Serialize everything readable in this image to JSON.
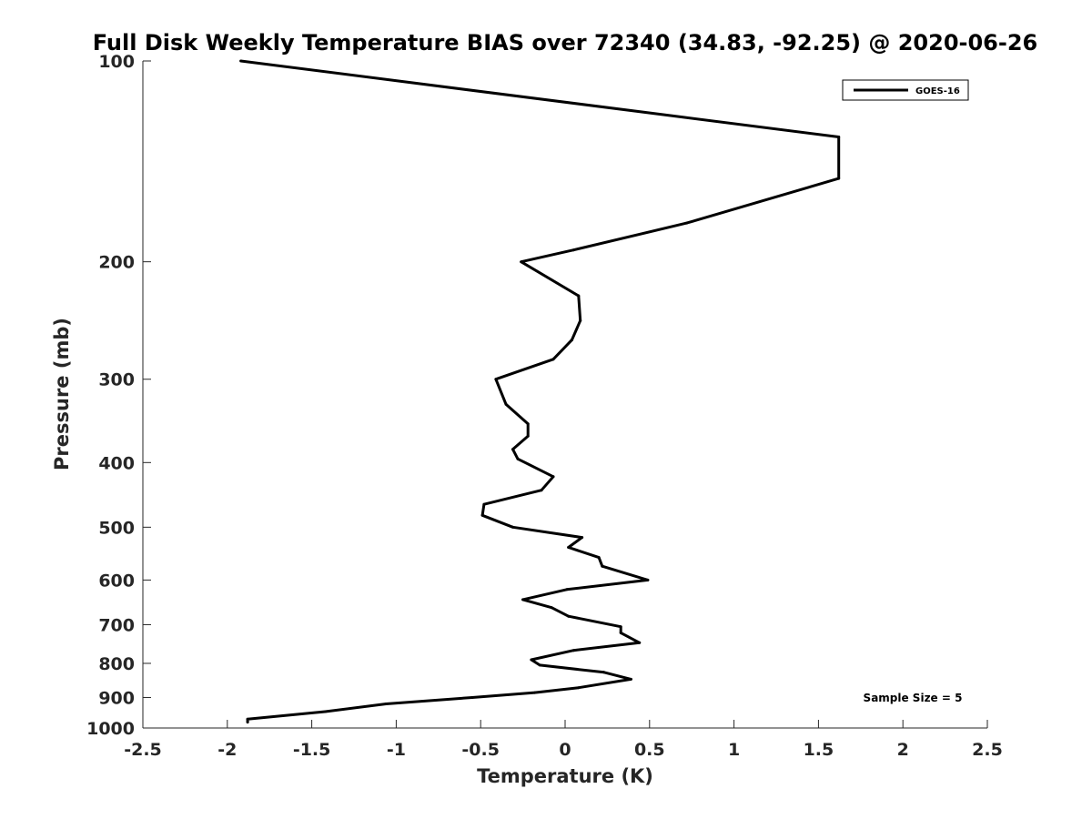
{
  "chart_data": {
    "type": "line",
    "title": "Full Disk Weekly Temperature BIAS over 72340 (34.83, -92.25) @ 2020-06-26",
    "xlabel": "Temperature (K)",
    "ylabel": "Pressure (mb)",
    "xlim": [
      -2.5,
      2.5
    ],
    "ylim": [
      100,
      1000
    ],
    "y_scale": "log",
    "y_reversed": true,
    "grid": false,
    "legend_position": "top-right",
    "x_ticks": [
      "-2.5",
      "-2",
      "-1.5",
      "-1",
      "-0.5",
      "0",
      "0.5",
      "1",
      "1.5",
      "2",
      "2.5"
    ],
    "y_ticks": [
      "100",
      "200",
      "300",
      "400",
      "500",
      "600",
      "700",
      "800",
      "900",
      "1000"
    ],
    "annotation": "Sample Size = 5",
    "series": [
      {
        "name": "GOES-16",
        "color": "#000000",
        "x": [
          -1.92,
          1.62,
          1.62,
          0.72,
          0.05,
          -0.26,
          0.08,
          0.09,
          0.04,
          -0.07,
          -0.41,
          -0.35,
          -0.22,
          -0.22,
          -0.31,
          -0.28,
          -0.07,
          -0.14,
          -0.48,
          -0.49,
          -0.31,
          0.1,
          0.02,
          0.2,
          0.22,
          0.49,
          0.01,
          -0.25,
          -0.08,
          0.02,
          0.33,
          0.33,
          0.44,
          0.05,
          -0.2,
          -0.15,
          0.23,
          0.39,
          0.08,
          -0.18,
          -0.55,
          -1.06,
          -1.42,
          -1.88,
          -1.88
        ],
        "y": [
          100,
          130,
          150,
          175,
          192,
          200,
          225,
          245,
          262,
          280,
          300,
          327,
          350,
          365,
          382,
          395,
          420,
          440,
          462,
          480,
          500,
          518,
          536,
          555,
          572,
          600,
          620,
          642,
          660,
          680,
          705,
          720,
          745,
          765,
          790,
          805,
          825,
          845,
          870,
          885,
          900,
          920,
          945,
          970,
          980
        ]
      }
    ]
  }
}
